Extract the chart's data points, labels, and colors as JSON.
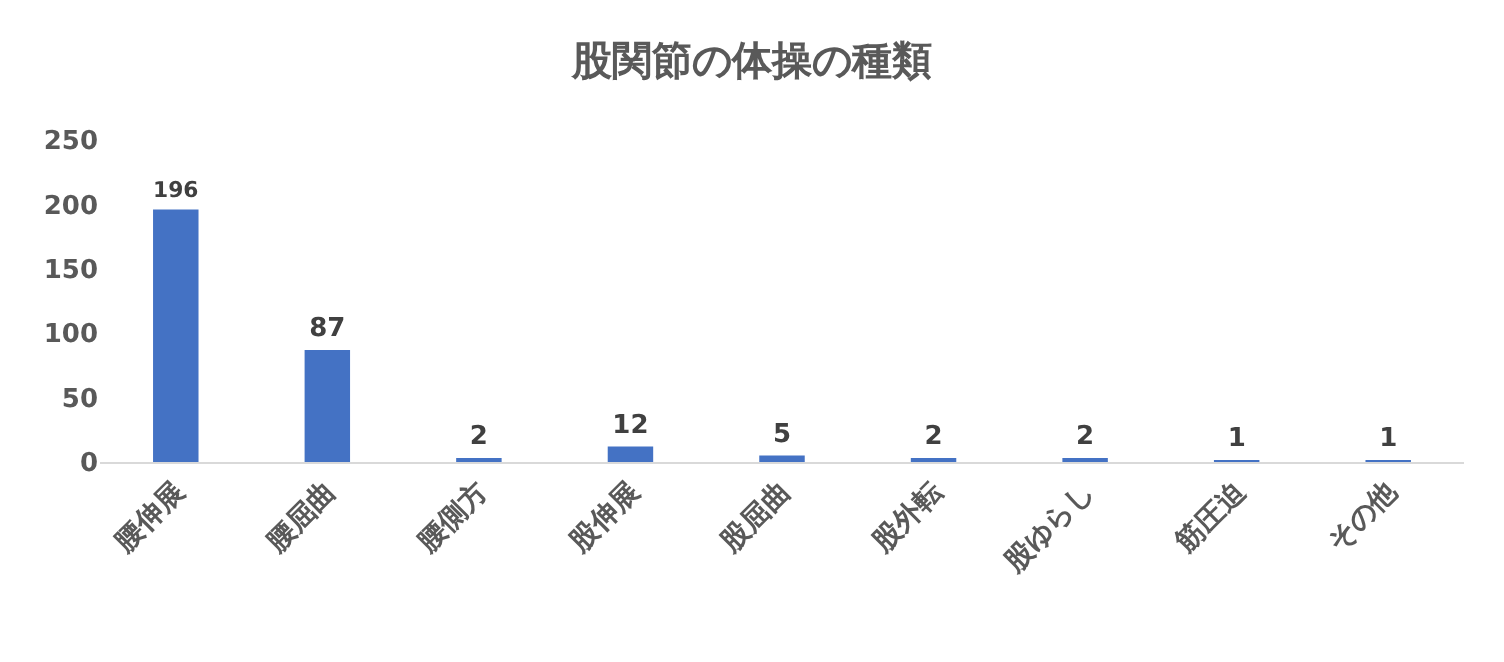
{
  "chart_data": {
    "type": "bar",
    "title": "股関節の体操の種類",
    "categories": [
      "腰伸展",
      "腰屈曲",
      "腰側方",
      "股伸展",
      "股屈曲",
      "股外転",
      "股ゆらし",
      "筋圧迫",
      "その他"
    ],
    "values": [
      196,
      87,
      2,
      12,
      5,
      2,
      2,
      1,
      1
    ],
    "color": "#4472c4",
    "ylim": [
      0,
      250
    ],
    "yticks": [
      0,
      50,
      100,
      150,
      200,
      250
    ],
    "grid": false,
    "data_labels": true
  }
}
